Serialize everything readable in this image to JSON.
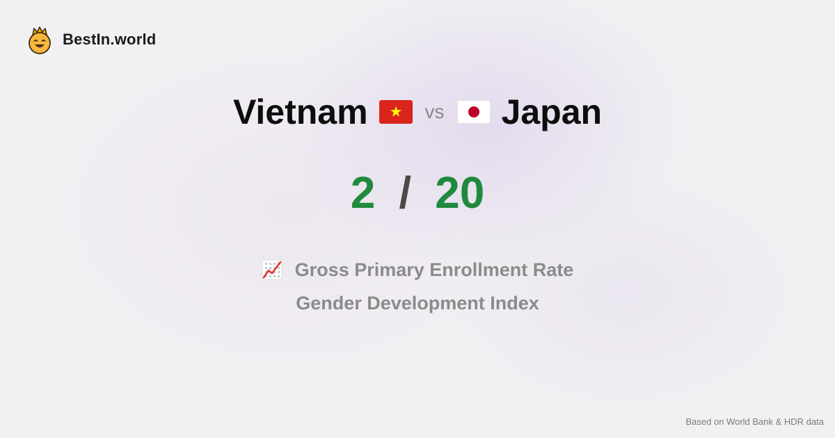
{
  "brand": {
    "name": "BestIn.world",
    "icon": "crown-smiley-icon"
  },
  "comparison": {
    "left": {
      "country": "Vietnam",
      "flag": "vietnam-flag-icon",
      "rank": "2"
    },
    "vs_label": "vs",
    "right": {
      "country": "Japan",
      "flag": "japan-flag-icon",
      "rank": "20"
    },
    "separator": "/"
  },
  "metric": {
    "icon": "chart-increasing-icon",
    "line1": "Gross Primary Enrollment Rate",
    "line2": "Gender Development Index"
  },
  "footer": {
    "source": "Based on World Bank & HDR data"
  },
  "colors": {
    "rank": "#1f8a3c",
    "vietnam_red": "#da251d",
    "vietnam_star": "#ffff00",
    "japan_red": "#bc002d"
  }
}
